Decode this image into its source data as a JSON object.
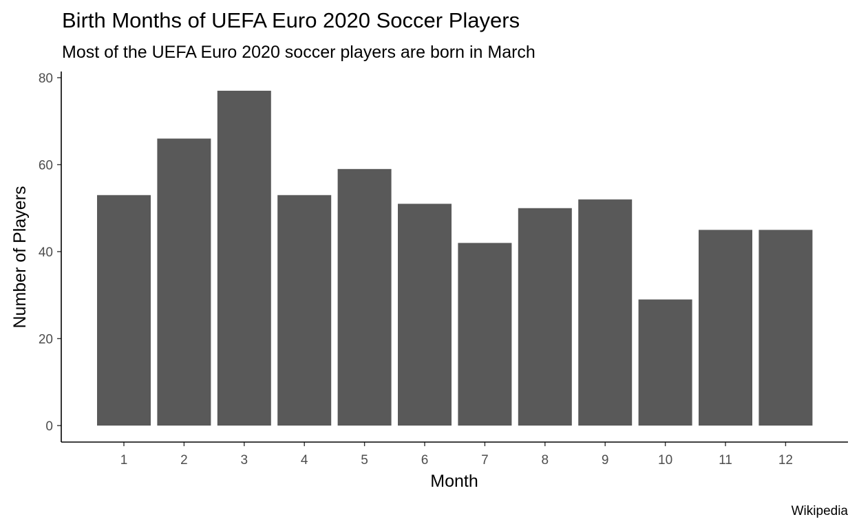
{
  "chart_data": {
    "type": "bar",
    "title": "Birth Months of UEFA Euro 2020 Soccer Players",
    "subtitle": "Most of the UEFA Euro 2020 soccer players are born in March",
    "xlabel": "Month",
    "ylabel": "Number of Players",
    "caption": "Wikipedia",
    "categories": [
      "1",
      "2",
      "3",
      "4",
      "5",
      "6",
      "7",
      "8",
      "9",
      "10",
      "11",
      "12"
    ],
    "values": [
      53,
      66,
      77,
      53,
      59,
      51,
      42,
      50,
      52,
      29,
      45,
      45
    ],
    "ylim": [
      0,
      80
    ],
    "yticks": [
      "0",
      "20",
      "40",
      "60",
      "80"
    ],
    "grid": false,
    "bar_color": "#595959"
  }
}
